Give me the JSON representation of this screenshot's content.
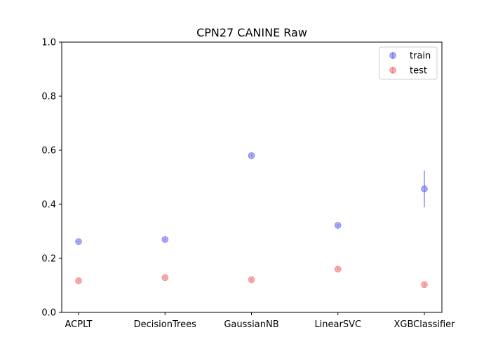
{
  "chart_data": {
    "type": "scatter",
    "title": "CPN27 CANINE Raw",
    "xlabel": "",
    "ylabel": "",
    "categories": [
      "ACPLT",
      "DecisionTrees",
      "GaussianNB",
      "LinearSVC",
      "XGBClassifier"
    ],
    "ylim": [
      0.0,
      1.0
    ],
    "yticks": [
      "0.0",
      "0.2",
      "0.4",
      "0.6",
      "0.8",
      "1.0"
    ],
    "grid": false,
    "legend_position": "top-right",
    "series": [
      {
        "name": "train",
        "color": "#6b6bf0",
        "values": [
          0.262,
          0.27,
          0.58,
          0.322,
          0.457
        ],
        "errors": [
          0.004,
          0.004,
          0.005,
          0.005,
          0.068
        ]
      },
      {
        "name": "test",
        "color": "#f07070",
        "values": [
          0.117,
          0.129,
          0.121,
          0.16,
          0.103
        ],
        "errors": [
          0.005,
          0.004,
          0.004,
          0.004,
          0.005
        ]
      }
    ]
  }
}
